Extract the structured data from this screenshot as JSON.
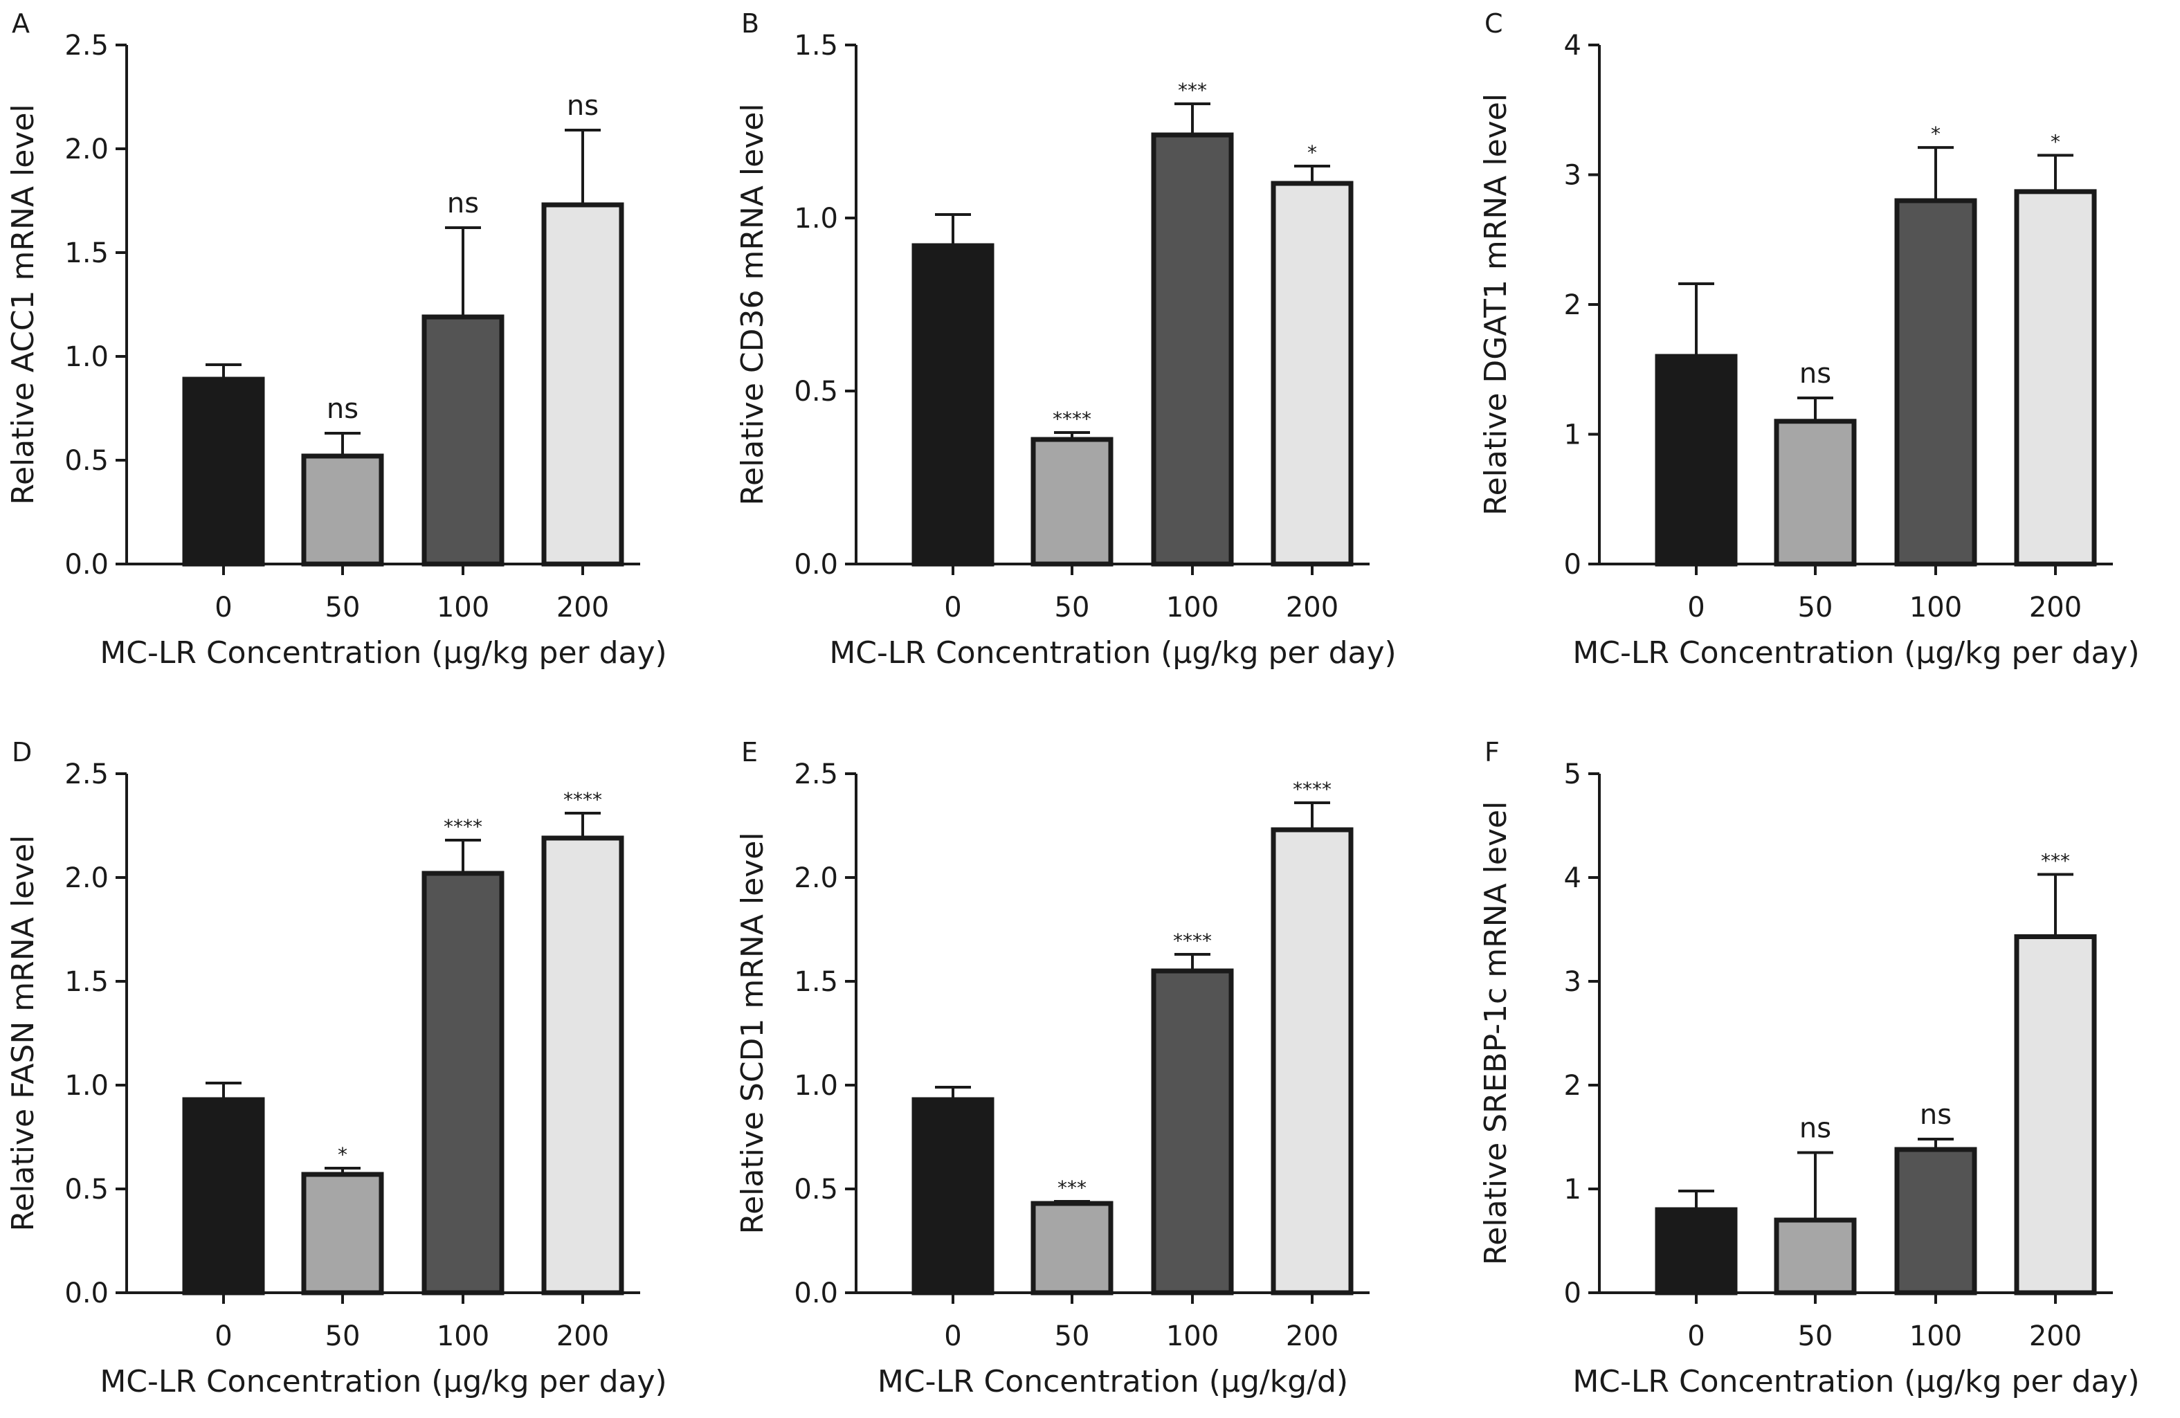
{
  "figure": {
    "colors": {
      "axis": "#1a1a1a",
      "bar_outline": "#1a1a1a",
      "groups": [
        "#1a1a1a",
        "#a6a6a6",
        "#545454",
        "#e4e4e4"
      ]
    },
    "panels": [
      {
        "label": "A",
        "chart_type": "bar",
        "categories": [
          "0",
          "50",
          "100",
          "200"
        ],
        "values": [
          0.89,
          0.52,
          1.19,
          1.73
        ],
        "errors": [
          0.07,
          0.11,
          0.43,
          0.36
        ],
        "significance": [
          "",
          "ns",
          "ns",
          "ns"
        ],
        "ylabel": "Relative ACC1 mRNA level",
        "xlabel": "MC-LR Concentration (µg/kg per day)",
        "ylim": [
          0,
          2.5
        ],
        "yticks": [
          "0.0",
          "0.5",
          "1.0",
          "1.5",
          "2.0",
          "2.5"
        ]
      },
      {
        "label": "B",
        "chart_type": "bar",
        "categories": [
          "0",
          "50",
          "100",
          "200"
        ],
        "values": [
          0.92,
          0.36,
          1.24,
          1.1
        ],
        "errors": [
          0.09,
          0.02,
          0.09,
          0.05
        ],
        "significance": [
          "",
          "****",
          "***",
          "*"
        ],
        "ylabel": "Relative CD36 mRNA level",
        "xlabel": "MC-LR Concentration (µg/kg per day)",
        "ylim": [
          0,
          1.5
        ],
        "yticks": [
          "0.0",
          "0.5",
          "1.0",
          "1.5"
        ]
      },
      {
        "label": "C",
        "chart_type": "bar",
        "categories": [
          "0",
          "50",
          "100",
          "200"
        ],
        "values": [
          1.6,
          1.1,
          2.8,
          2.87
        ],
        "errors": [
          0.56,
          0.18,
          0.41,
          0.28
        ],
        "significance": [
          "",
          "ns",
          "*",
          "*"
        ],
        "ylabel": "Relative DGAT1 mRNA level",
        "xlabel": "MC-LR Concentration (µg/kg per day)",
        "ylim": [
          0,
          4
        ],
        "yticks": [
          "0",
          "1",
          "2",
          "3",
          "4"
        ]
      },
      {
        "label": "D",
        "chart_type": "bar",
        "categories": [
          "0",
          "50",
          "100",
          "200"
        ],
        "values": [
          0.93,
          0.57,
          2.02,
          2.19
        ],
        "errors": [
          0.08,
          0.03,
          0.16,
          0.12
        ],
        "significance": [
          "",
          "*",
          "****",
          "****"
        ],
        "ylabel": "Relative FASN mRNA level",
        "xlabel": "MC-LR Concentration (µg/kg per day)",
        "ylim": [
          0,
          2.5
        ],
        "yticks": [
          "0.0",
          "0.5",
          "1.0",
          "1.5",
          "2.0",
          "2.5"
        ]
      },
      {
        "label": "E",
        "chart_type": "bar",
        "categories": [
          "0",
          "50",
          "100",
          "200"
        ],
        "values": [
          0.93,
          0.43,
          1.55,
          2.23
        ],
        "errors": [
          0.06,
          0.01,
          0.08,
          0.13
        ],
        "significance": [
          "",
          "***",
          "****",
          "****"
        ],
        "ylabel": "Relative SCD1 mRNA level",
        "xlabel": "MC-LR Concentration (µg/kg/d)",
        "ylim": [
          0,
          2.5
        ],
        "yticks": [
          "0.0",
          "0.5",
          "1.0",
          "1.5",
          "2.0",
          "2.5"
        ]
      },
      {
        "label": "F",
        "chart_type": "bar",
        "categories": [
          "0",
          "50",
          "100",
          "200"
        ],
        "values": [
          0.8,
          0.7,
          1.38,
          3.43
        ],
        "errors": [
          0.18,
          0.65,
          0.1,
          0.6
        ],
        "significance": [
          "",
          "ns",
          "ns",
          "***"
        ],
        "ylabel": "Relative SREBP-1c mRNA level",
        "xlabel": "MC-LR Concentration (µg/kg per day)",
        "ylim": [
          0,
          5
        ],
        "yticks": [
          "0",
          "1",
          "2",
          "3",
          "4",
          "5"
        ]
      }
    ]
  }
}
